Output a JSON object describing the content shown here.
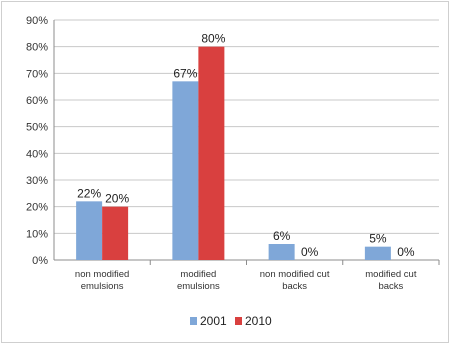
{
  "chart_data": {
    "type": "bar",
    "title": "",
    "xlabel": "",
    "ylabel": "",
    "categories": [
      [
        "non modified",
        "emulsions"
      ],
      [
        "modified",
        "emulsions"
      ],
      [
        "non modified cut",
        "backs"
      ],
      [
        "modified cut",
        "backs"
      ]
    ],
    "series": [
      {
        "name": "2001",
        "values": [
          22,
          67,
          6,
          5
        ],
        "labels": [
          "22%",
          "67%",
          "6%",
          "5%"
        ]
      },
      {
        "name": "2010",
        "values": [
          20,
          80,
          0,
          0
        ],
        "labels": [
          "20%",
          "80%",
          "0%",
          "0%"
        ]
      }
    ],
    "colors": {
      "2001": "#7fa7d8",
      "2010": "#d9403f"
    },
    "ylim": [
      0,
      90
    ],
    "yticks": [
      "0%",
      "10%",
      "20%",
      "30%",
      "40%",
      "50%",
      "60%",
      "70%",
      "80%",
      "90%"
    ],
    "grid": true,
    "legend": "bottom"
  }
}
